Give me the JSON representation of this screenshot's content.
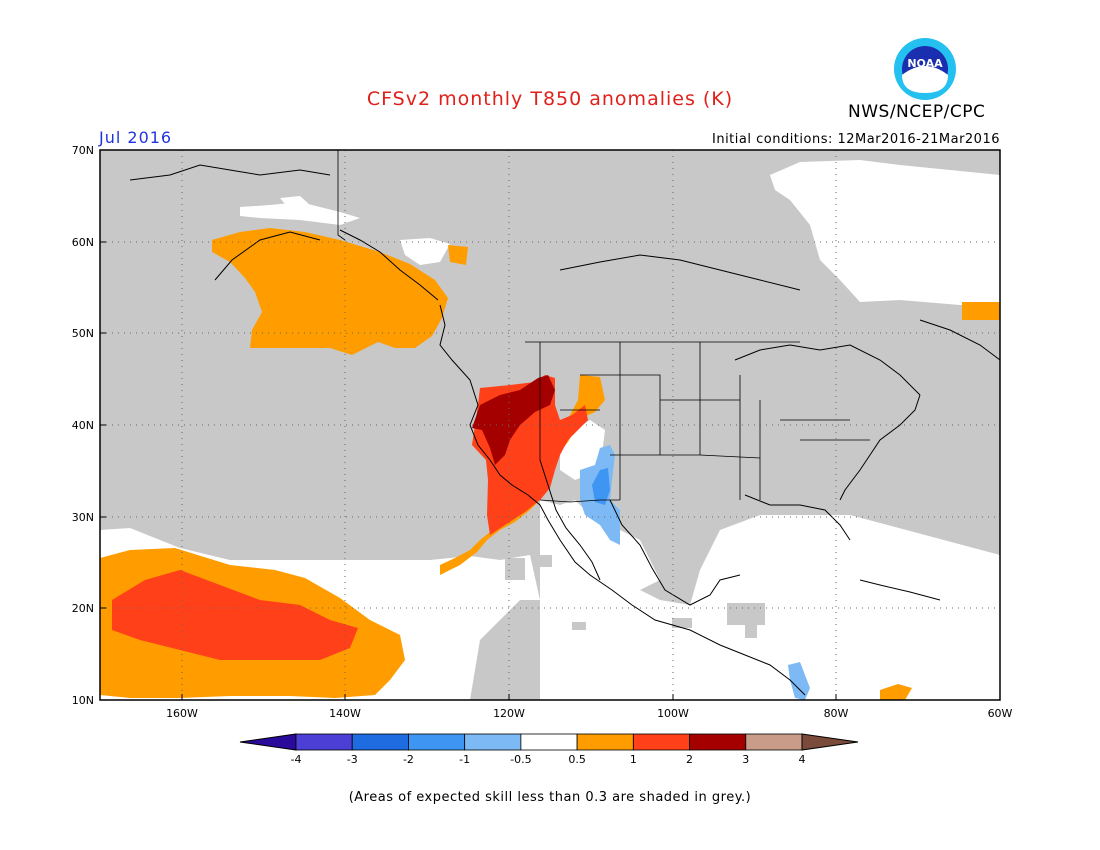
{
  "title": "CFSv2 monthly T850 anomalies (K)",
  "forecast_month": "Jul 2016",
  "initial_conditions": "Initial conditions: 12Mar2016-21Mar2016",
  "agency": "NWS/NCEP/CPC",
  "logo_text": "NOAA",
  "footnote": "(Areas of expected skill less than 0.3 are shaded in grey.)",
  "map": {
    "lat_labels": [
      "70N",
      "60N",
      "50N",
      "40N",
      "30N",
      "20N",
      "10N"
    ],
    "lon_labels": [
      "160W",
      "140W",
      "120W",
      "100W",
      "80W",
      "60W"
    ]
  },
  "colorbar": {
    "tick_labels": [
      "-4",
      "-3",
      "-2",
      "-1",
      "-0.5",
      "0.5",
      "1",
      "2",
      "3",
      "4"
    ],
    "colors": [
      "#2a0a9a",
      "#4b3fd6",
      "#1f6be0",
      "#3f96f2",
      "#7cb9f5",
      "#ffffff",
      "#ff9d00",
      "#ff4018",
      "#a50000",
      "#c99c8a",
      "#7a4a3a"
    ]
  },
  "colors": {
    "grey_low_skill": "#c8c8c8",
    "title_red": "#e0201a",
    "month_blue": "#1f33e0"
  }
}
